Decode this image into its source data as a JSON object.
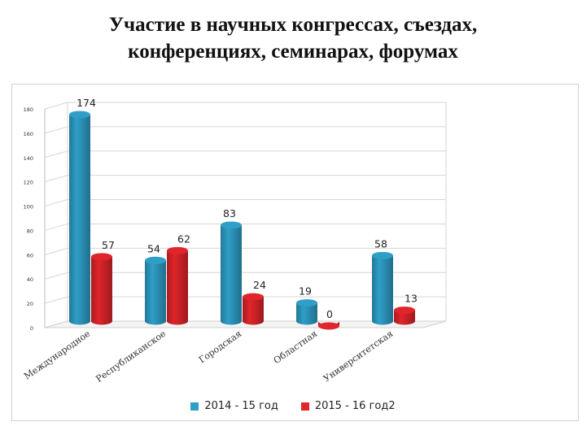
{
  "slide": {
    "title_line1": "Участие в научных конгрессах, съездах,",
    "title_line2": "конференциях, семинарах, форумах"
  },
  "chart_data": {
    "type": "bar",
    "categories": [
      "Международное",
      "Республиканское",
      "Городская",
      "Областная",
      "Университетская"
    ],
    "series": [
      {
        "name": "2014 - 15 год",
        "values": [
          174,
          54,
          83,
          19,
          58
        ],
        "color": "#2f9fc8"
      },
      {
        "name": "2015 - 16 год2",
        "values": [
          57,
          62,
          24,
          0,
          13
        ],
        "color": "#e0252b"
      }
    ],
    "ylim": [
      0,
      180
    ],
    "yticks": [
      0,
      20,
      40,
      60,
      80,
      100,
      120,
      140,
      160,
      180
    ],
    "grid": true,
    "legend_position": "bottom",
    "style": "3d-cylinder"
  }
}
